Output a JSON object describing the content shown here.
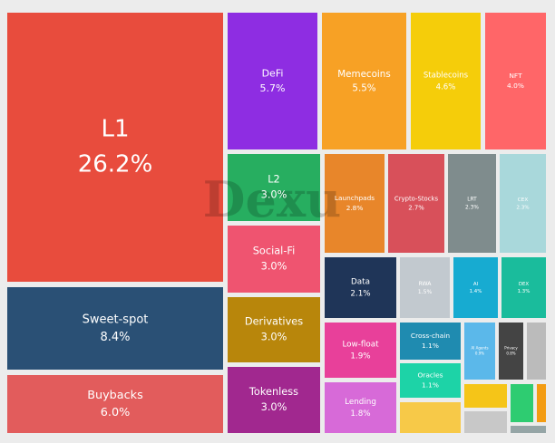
{
  "chart_data": {
    "type": "treemap",
    "watermark": "Dexu",
    "categories": [
      "L1",
      "Sweet-spot",
      "Buybacks",
      "DeFi",
      "Memecoins",
      "Stablecoins",
      "NFT",
      "L2",
      "Social-Fi",
      "Derivatives",
      "Tokenless",
      "Launchpads",
      "Crypto-Stocks",
      "LRT",
      "CEX",
      "Data",
      "RWA",
      "AI",
      "DEX",
      "Low-float",
      "Lending",
      "Cross-chain",
      "Oracles",
      null,
      "AI Agents",
      "Privacy",
      null,
      null,
      null,
      null,
      null,
      null
    ],
    "values": [
      26.2,
      8.4,
      6.0,
      5.7,
      5.5,
      4.6,
      4.0,
      3.0,
      3.0,
      3.0,
      3.0,
      2.8,
      2.7,
      2.3,
      2.3,
      2.1,
      1.5,
      1.4,
      1.3,
      1.9,
      1.8,
      1.1,
      1.1,
      0.9,
      0.9,
      0.8,
      0.5,
      0.9,
      0.6,
      0.6,
      0.2,
      0.2
    ],
    "value_labels": [
      "26.2%",
      "8.4%",
      "6.0%",
      "5.7%",
      "5.5%",
      "4.6%",
      "4.0%",
      "3.0%",
      "3.0%",
      "3.0%",
      "3.0%",
      "2.8%",
      "2.7%",
      "2.3%",
      "2.3%",
      "2.1%",
      "1.5%",
      "1.4%",
      "1.3%",
      "1.9%",
      "1.8%",
      "1.1%",
      "1.1%",
      null,
      "0.9%",
      "0.8%",
      null,
      null,
      null,
      null,
      null,
      null
    ],
    "colors": [
      "#e84c3d",
      "#2a5075",
      "#e25c5c",
      "#8e2de2",
      "#f7a125",
      "#f5cd0a",
      "#ff6668",
      "#27ae60",
      "#ef5470",
      "#b8860b",
      "#a1288f",
      "#e8862a",
      "#d8505a",
      "#7f8c8d",
      "#a9d8db",
      "#1f3558",
      "#c2c9cf",
      "#17abd1",
      "#1abc9c",
      "#e8409a",
      "#d76ad8",
      "#1f8bb0",
      "#1dd3a7",
      "#f7c948",
      "#5bb8ea",
      "#444444",
      "#bbbbbb",
      "#f5c518",
      "#c8c8c8",
      "#2ecc71",
      "#f39c12",
      "#95a5a6"
    ]
  }
}
